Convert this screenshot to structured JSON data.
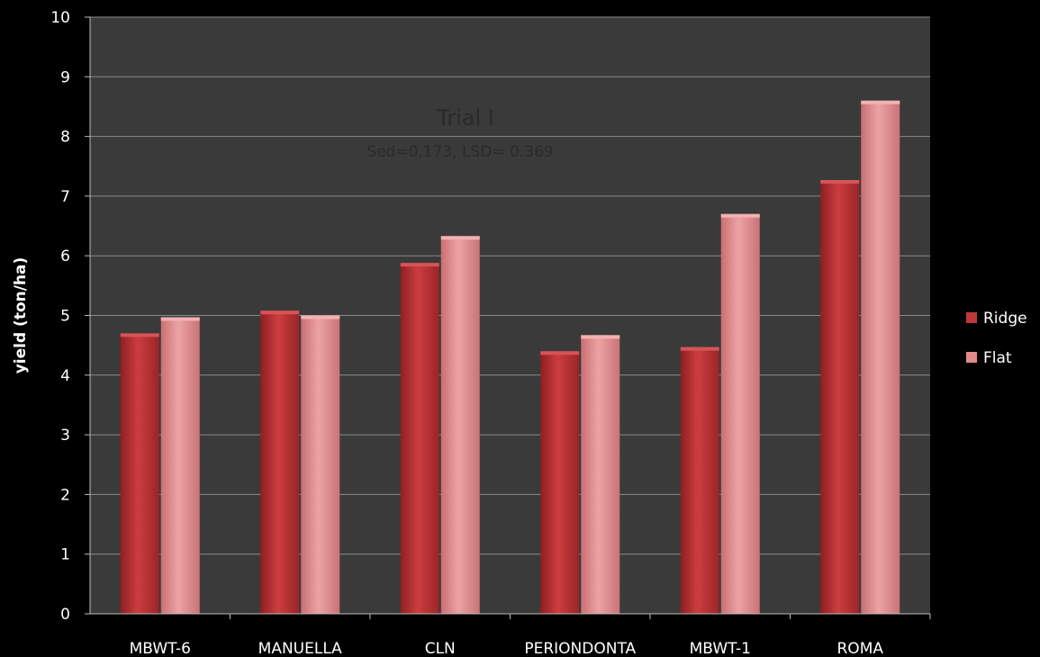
{
  "colors": {
    "background": "#000000",
    "plot_area": "#3a3a3a",
    "gridline": "#8a8a8a",
    "ridge": "#c0383a",
    "flat": "#e08a8c",
    "text": "#ffffff"
  },
  "chart_data": {
    "type": "bar",
    "title": "Trial I",
    "subtitle": "Sed=0.173, LSD= 0.369",
    "xlabel": "",
    "ylabel": "yield (ton/ha)",
    "ylim": [
      0,
      10
    ],
    "yticks": [
      "0",
      "1",
      "2",
      "3",
      "4",
      "5",
      "6",
      "7",
      "8",
      "9",
      "10"
    ],
    "grid": true,
    "legend_position": "right",
    "categories": [
      "MBWT-6",
      "MANUELLA",
      "CLN",
      "PERIONDONTA",
      "MBWT-1",
      "ROMA"
    ],
    "series": [
      {
        "name": "Ridge",
        "values": [
          4.7,
          5.08,
          5.88,
          4.4,
          4.47,
          7.27
        ]
      },
      {
        "name": "Flat",
        "values": [
          4.97,
          5.0,
          6.33,
          4.67,
          6.7,
          8.6
        ]
      }
    ]
  }
}
